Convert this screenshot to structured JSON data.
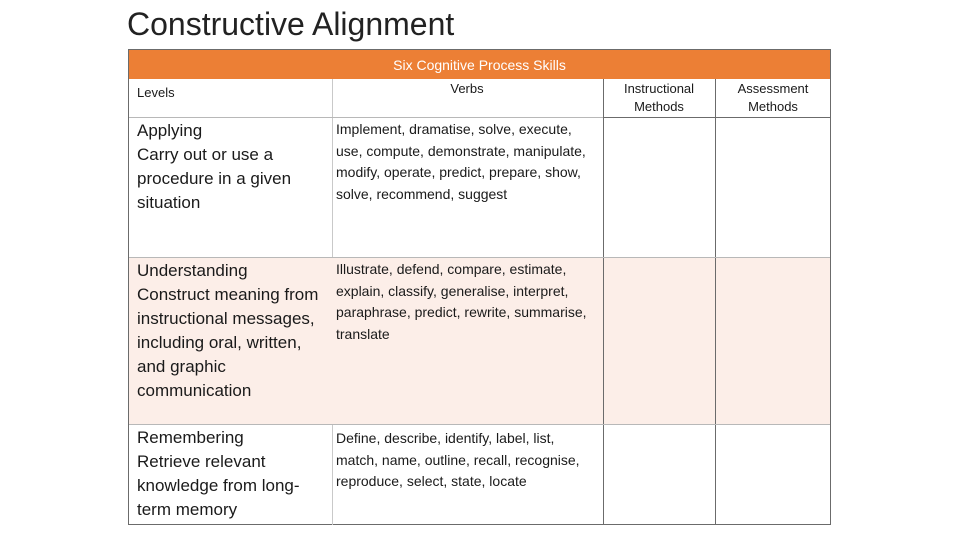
{
  "slide": {
    "title": "Constructive Alignment"
  },
  "table": {
    "band_label": "Six Cognitive Process Skills",
    "band_color": "#ec7f35",
    "row_tint": "#fceee8",
    "headers": {
      "levels": "Levels",
      "verbs": "Verbs",
      "instructional": "Instructional Methods",
      "assessment": "Assessment Methods"
    },
    "rows": [
      {
        "level": "Applying",
        "description": "Carry out or use a procedure in a given situation",
        "verbs": "Implement, dramatise, solve, execute, use, compute, demonstrate, manipulate, modify, operate, predict, prepare, show, solve, recommend, suggest"
      },
      {
        "level": "Understanding",
        "description": "Construct meaning from instructional messages, including oral, written, and graphic communication",
        "verbs": "Illustrate, defend, compare, estimate, explain, classify, generalise, interpret, paraphrase, predict, rewrite, summarise, translate"
      },
      {
        "level": "Remembering",
        "description": "Retrieve relevant knowledge from long-term memory",
        "verbs": "Define, describe, identify, label, list, match, name, outline, recall, recognise, reproduce, select, state, locate"
      }
    ]
  }
}
